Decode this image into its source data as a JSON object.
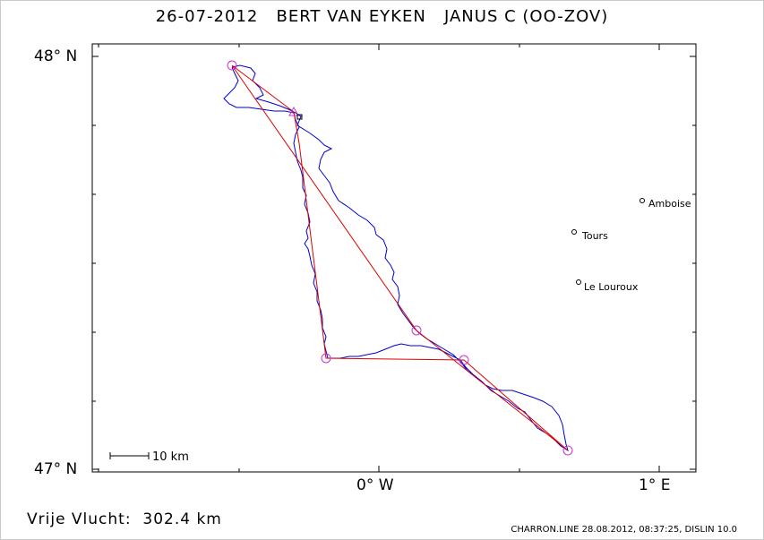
{
  "header": {
    "date": "26-07-2012",
    "pilot": "BERT VAN EYKEN",
    "glider": "JANUS C (OO-ZOV)"
  },
  "axes": {
    "lat_top": "48° N",
    "lat_bottom": "47° N",
    "lon_left": "0° W",
    "lon_right": "1° E"
  },
  "scale_bar": {
    "label": "10 km"
  },
  "towns": [
    {
      "name": "Amboise"
    },
    {
      "name": "Tours"
    },
    {
      "name": "Le Louroux"
    }
  ],
  "footer": {
    "distance_label": "Vrije Vlucht:",
    "distance_value": "302.4 km",
    "credits": "CHARRON.LINE 28.08.2012, 08:37:25, DISLIN 10.0"
  },
  "colors": {
    "track": "#0000cc",
    "task": "#dd0000",
    "turnpoint": "#cc33cc"
  }
}
